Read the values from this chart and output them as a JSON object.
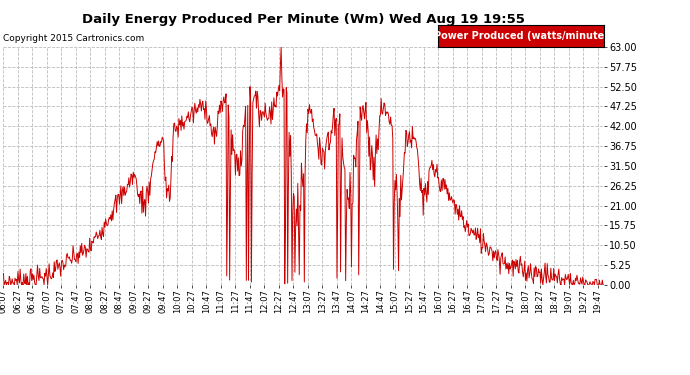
{
  "title": "Daily Energy Produced Per Minute (Wm) Wed Aug 19 19:55",
  "copyright": "Copyright 2015 Cartronics.com",
  "legend_label": "Power Produced (watts/minute)",
  "legend_bg": "#cc0000",
  "legend_text_color": "#ffffff",
  "line_color": "#cc0000",
  "bg_color": "#ffffff",
  "grid_color": "#bbbbbb",
  "ylim": [
    0.0,
    63.0
  ],
  "yticks": [
    0.0,
    5.25,
    10.5,
    15.75,
    21.0,
    26.25,
    31.5,
    36.75,
    42.0,
    47.25,
    52.5,
    57.75,
    63.0
  ],
  "figsize": [
    6.9,
    3.75
  ],
  "dpi": 100
}
